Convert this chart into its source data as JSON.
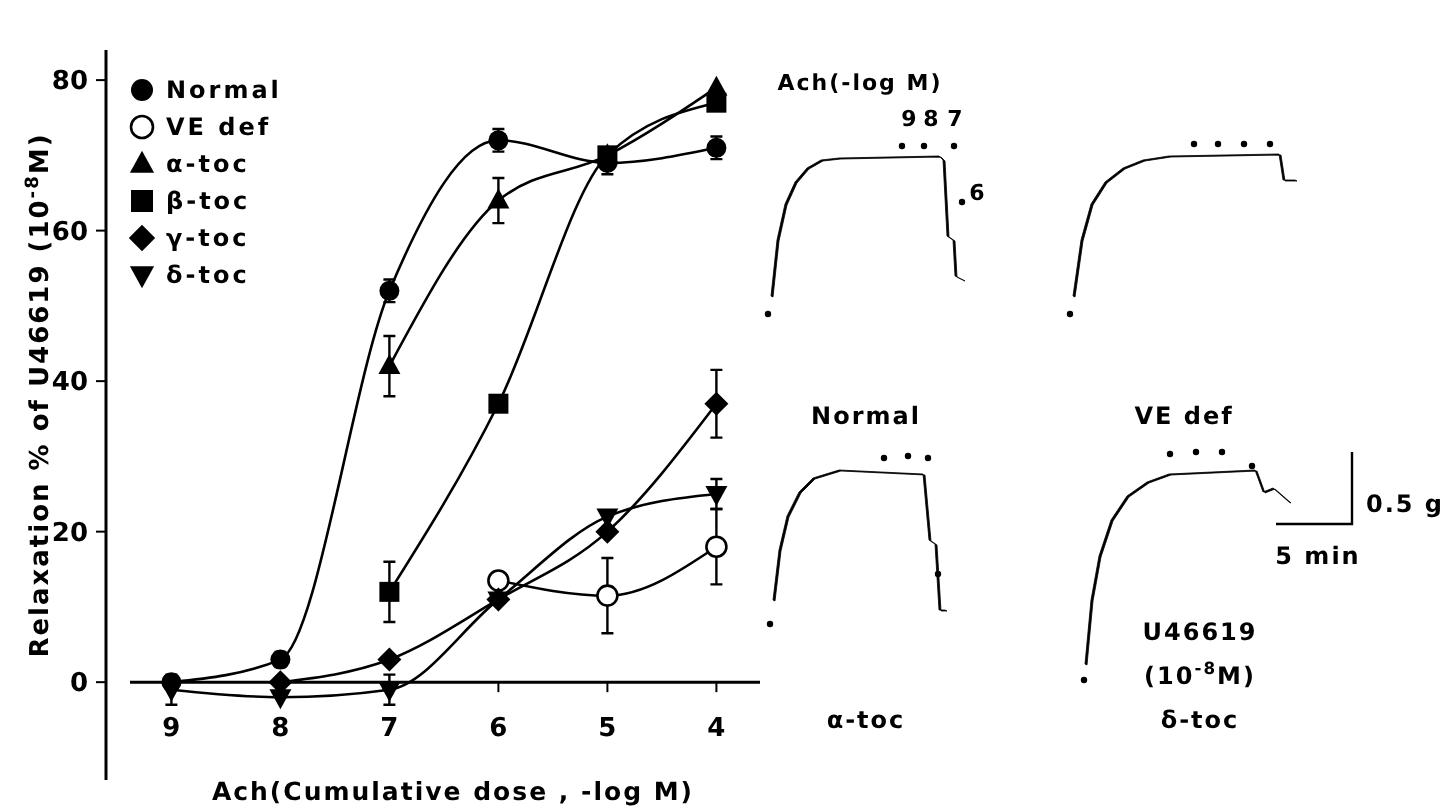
{
  "chart_data": [
    {
      "type": "line",
      "xlabel": "Ach(Cumulative dose , -log M)",
      "ylabel": "Relaxation % of U46619 (10$^{-8}$M)",
      "x": [
        9,
        8,
        7,
        6,
        5,
        4
      ],
      "xlim": [
        9.6,
        3.6
      ],
      "xticks": [
        9,
        8,
        7,
        6,
        5,
        4
      ],
      "ylim": [
        -13,
        84
      ],
      "yticks": [
        0,
        20,
        40,
        60,
        80
      ],
      "legend": "top left",
      "grid": false,
      "series": [
        {
          "name": "Normal",
          "color": "#000000",
          "marker": "circle",
          "values": [
            0,
            3,
            52,
            72,
            69,
            71
          ],
          "errors": [
            null,
            1,
            1.5,
            1.5,
            1.5,
            1.5
          ]
        },
        {
          "name": "VE def",
          "color": "#000000",
          "marker": "circle-open",
          "values": [
            null,
            null,
            null,
            13.5,
            11.5,
            18
          ],
          "errors": [
            null,
            null,
            null,
            null,
            5,
            5
          ]
        },
        {
          "name": "α-toc",
          "color": "#000000",
          "marker": "triangle",
          "values": [
            null,
            null,
            42,
            64,
            70,
            79
          ],
          "errors": [
            null,
            null,
            4,
            3,
            null,
            null
          ]
        },
        {
          "name": "β-toc",
          "color": "#000000",
          "marker": "square",
          "values": [
            null,
            null,
            12,
            37,
            70,
            77
          ],
          "errors": [
            null,
            null,
            4,
            null,
            null,
            null
          ]
        },
        {
          "name": "γ-toc",
          "color": "#000000",
          "marker": "diamond",
          "values": [
            null,
            0,
            3,
            11,
            20,
            37
          ],
          "errors": [
            null,
            null,
            null,
            null,
            null,
            4.5
          ]
        },
        {
          "name": "δ-toc",
          "color": "#000000",
          "marker": "triangle-down",
          "values": [
            -1,
            -2,
            -1,
            11,
            22,
            25
          ],
          "errors": [
            2,
            null,
            2,
            null,
            null,
            2
          ]
        }
      ]
    },
    {
      "type": "other",
      "annotations": [
        "Ach(-log M)",
        "9",
        "8",
        "7",
        "6",
        "Normal",
        "VE def",
        "α-toc",
        "δ-toc",
        "0.5 g",
        "5 min",
        "U46619",
        "(10$^{-8}$M)"
      ]
    }
  ]
}
